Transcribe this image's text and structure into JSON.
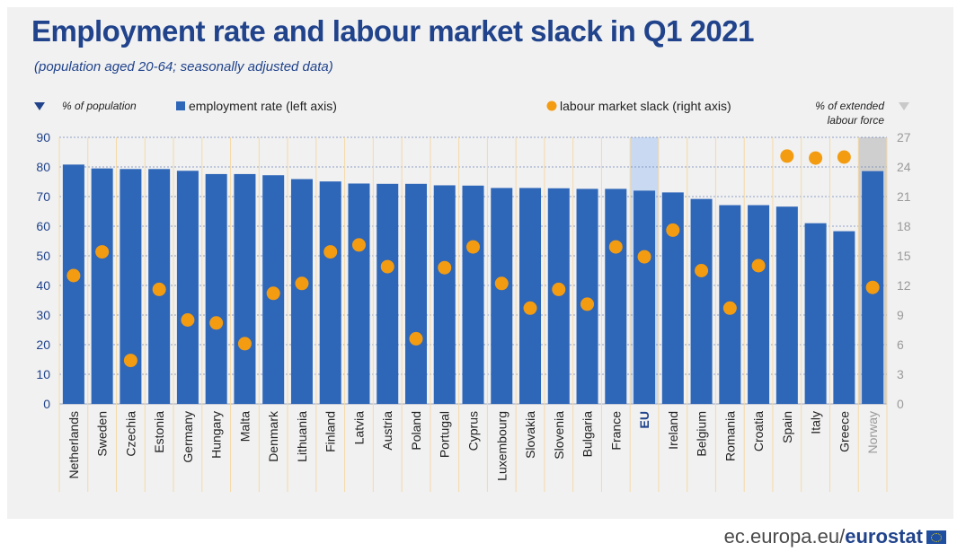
{
  "title": "Employment rate and labour market slack in Q1 2021",
  "subtitle": "(population aged 20-64; seasonally adjusted data)",
  "footer": {
    "domain": "ec.europa.eu/",
    "brand": "eurostat"
  },
  "legend": {
    "left_axis_label": "% of population",
    "employment": "employment rate (left axis)",
    "slack": "labour market slack (right axis)",
    "right_axis_label_line1": "% of extended",
    "right_axis_label_line2": "labour force"
  },
  "colors": {
    "bar": "#2e66b8",
    "bar_eu_bg": "#c9d9f1",
    "bar_norway_bg": "#cfcfcf",
    "dot": "#f39c12",
    "axis_text": "#20438c",
    "grid": "#6d87b8",
    "separator": "#f5d9a6"
  },
  "chart_data": {
    "type": "bar",
    "categories": [
      "Netherlands",
      "Sweden",
      "Czechia",
      "Estonia",
      "Germany",
      "Hungary",
      "Malta",
      "Denmark",
      "Lithuania",
      "Finland",
      "Latvia",
      "Austria",
      "Poland",
      "Portugal",
      "Cyprus",
      "Luxembourg",
      "Slovakia",
      "Slovenia",
      "Bulgaria",
      "France",
      "EU",
      "Ireland",
      "Belgium",
      "Romania",
      "Croatia",
      "Spain",
      "Italy",
      "Greece",
      "Norway"
    ],
    "series": [
      {
        "name": "employment rate (left axis)",
        "axis": "left",
        "values": [
          80.8,
          79.5,
          79.3,
          79.3,
          78.7,
          77.6,
          77.6,
          77.2,
          75.9,
          75.1,
          74.4,
          74.3,
          74.3,
          73.8,
          73.7,
          72.9,
          72.9,
          72.8,
          72.6,
          72.6,
          72.0,
          71.4,
          69.2,
          67.1,
          67.1,
          66.6,
          61.0,
          58.3,
          78.6
        ]
      },
      {
        "name": "labour market slack (right axis)",
        "axis": "right",
        "values": [
          13.0,
          15.4,
          4.4,
          11.6,
          8.5,
          8.2,
          6.1,
          11.2,
          12.2,
          15.4,
          16.1,
          13.9,
          6.6,
          13.8,
          15.9,
          12.2,
          9.7,
          11.6,
          10.1,
          15.9,
          14.9,
          17.6,
          13.5,
          9.7,
          14.0,
          25.1,
          24.9,
          25.0,
          11.8
        ]
      }
    ],
    "ylim_left": [
      0,
      90
    ],
    "ylim_right": [
      0,
      27
    ],
    "yticks_left": [
      0,
      10,
      20,
      30,
      40,
      50,
      60,
      70,
      80,
      90
    ],
    "yticks_right": [
      0,
      3,
      6,
      9,
      12,
      15,
      18,
      21,
      24,
      27
    ],
    "highlight_eu": "EU",
    "highlight_other": "Norway",
    "grid": true,
    "legend_position": "top"
  }
}
